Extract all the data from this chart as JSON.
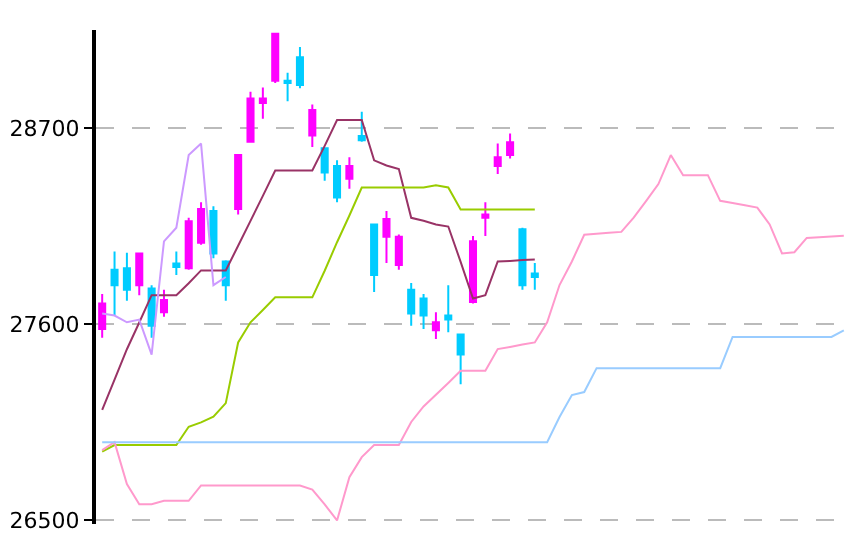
{
  "chart_data": {
    "type": "candlestick",
    "categories": [
      null,
      null,
      null,
      null,
      null,
      null,
      null,
      null,
      null,
      null,
      null,
      null,
      null,
      null,
      null,
      null,
      null,
      null,
      null,
      null,
      null,
      null,
      null,
      null,
      null,
      null,
      null,
      null,
      null,
      null,
      null,
      null,
      null,
      null,
      null,
      null,
      null,
      null,
      null,
      null,
      null,
      null,
      null,
      null,
      null,
      null,
      null,
      null,
      null,
      null,
      null,
      null,
      null,
      null,
      null,
      null,
      null,
      null,
      null,
      null,
      null
    ],
    "ohlc": [
      [
        27574,
        27770,
        27524,
        27717
      ],
      [
        27906,
        28008,
        27649,
        27819
      ],
      [
        27914,
        28001,
        27732,
        27793
      ],
      [
        27819,
        27997,
        27763,
        27997
      ],
      [
        27800,
        27819,
        27524,
        27592
      ],
      [
        27668,
        27793,
        27642,
        27736
      ],
      [
        27940,
        28008,
        27876,
        27921
      ],
      [
        27914,
        28197,
        27906,
        28178
      ],
      [
        28057,
        28284,
        28046,
        28246
      ],
      [
        28235,
        28262,
        27970,
        27997
      ],
      [
        27952,
        27959,
        27732,
        27819
      ],
      [
        28246,
        28549,
        28216,
        28549
      ],
      [
        28624,
        28904,
        28624,
        28866
      ],
      [
        28840,
        28927,
        28753,
        28866
      ],
      [
        28965,
        29229,
        28953,
        29229
      ],
      [
        28965,
        29010,
        28851,
        28953
      ],
      [
        29097,
        29154,
        28923,
        28942
      ],
      [
        28658,
        28832,
        28594,
        28802
      ],
      [
        28587,
        28587,
        28405,
        28451
      ],
      [
        28488,
        28519,
        28284,
        28311
      ],
      [
        28416,
        28537,
        28360,
        28488
      ],
      [
        28655,
        28791,
        28624,
        28632
      ],
      [
        28159,
        28159,
        27781,
        27876
      ],
      [
        28091,
        28235,
        27944,
        28190
      ],
      [
        27933,
        28103,
        27906,
        28091
      ],
      [
        27793,
        27831,
        27592,
        27660
      ],
      [
        27744,
        27770,
        27574,
        27649
      ],
      [
        27566,
        27668,
        27517,
        27611
      ],
      [
        27649,
        27819,
        27555,
        27626
      ],
      [
        27543,
        27543,
        27264,
        27430
      ],
      [
        27725,
        28095,
        27717,
        28065
      ],
      [
        28197,
        28284,
        28095,
        28216
      ],
      [
        28488,
        28613,
        28443,
        28537
      ],
      [
        28549,
        28670,
        28530,
        28621
      ],
      [
        28133,
        28141,
        27793,
        27819
      ],
      [
        27884,
        27944,
        27793,
        27865
      ],
      null,
      null,
      null,
      null,
      null,
      null,
      null,
      null,
      null,
      null,
      null,
      null,
      null,
      null,
      null,
      null,
      null,
      null,
      null,
      null,
      null,
      null,
      null,
      null,
      null
    ],
    "colors": [
      "#ff00ff",
      "#00ccff",
      "#00ccff",
      "#ff00ff",
      "#00ccff",
      "#ff00ff",
      "#00ccff",
      "#ff00ff",
      "#ff00ff",
      "#00ccff",
      "#00ccff",
      "#ff00ff",
      "#ff00ff",
      "#ff00ff",
      "#ff00ff",
      "#00ccff",
      "#00ccff",
      "#ff00ff",
      "#00ccff",
      "#00ccff",
      "#ff00ff",
      "#00ccff",
      "#00ccff",
      "#ff00ff",
      "#ff00ff",
      "#00ccff",
      "#00ccff",
      "#ff00ff",
      "#00ccff",
      "#00ccff",
      "#ff00ff",
      "#ff00ff",
      "#ff00ff",
      "#ff00ff",
      "#00ccff",
      "#00ccff",
      null,
      null,
      null,
      null,
      null,
      null,
      null,
      null,
      null,
      null,
      null,
      null,
      null,
      null,
      null,
      null,
      null,
      null,
      null,
      null,
      null,
      null,
      null,
      null,
      null
    ],
    "series": [
      {
        "type": "line",
        "color": "#993366",
        "values": [
          27120,
          27290,
          27460,
          27610,
          27763,
          27763,
          27763,
          27830,
          27902,
          27902,
          27902,
          28040,
          28180,
          28320,
          28462,
          28462,
          28462,
          28462,
          28600,
          28745,
          28745,
          28745,
          28519,
          28490,
          28470,
          28197,
          28180,
          28159,
          28148,
          27950,
          27744,
          27763,
          27952,
          27955,
          27960,
          27963,
          null,
          null,
          null,
          null,
          null,
          null,
          null,
          null,
          null,
          null,
          null,
          null,
          null,
          null,
          null,
          null,
          null,
          null,
          null,
          null,
          null,
          null,
          null,
          null,
          null
        ]
      },
      {
        "type": "line",
        "color": "#99cc00",
        "values": [
          26886,
          26923,
          26923,
          26923,
          26923,
          26923,
          26923,
          27025,
          27050,
          27082,
          27158,
          27498,
          27611,
          27680,
          27751,
          27751,
          27751,
          27751,
          27900,
          28060,
          28210,
          28367,
          28367,
          28367,
          28367,
          28367,
          28367,
          28380,
          28367,
          28243,
          28243,
          28243,
          28243,
          28243,
          28243,
          28243,
          null,
          null,
          null,
          null,
          null,
          null,
          null,
          null,
          null,
          null,
          null,
          null,
          null,
          null,
          null,
          null,
          null,
          null,
          null,
          null,
          null,
          null,
          null,
          null,
          null
        ]
      },
      {
        "type": "line",
        "color": "#cc99ff",
        "values": [
          27660,
          27649,
          27611,
          27626,
          27430,
          28065,
          28141,
          28549,
          28613,
          27819,
          27865,
          null,
          null,
          null,
          null,
          null,
          null,
          null,
          null,
          null,
          null,
          null,
          null,
          null,
          null,
          null,
          null,
          null,
          null,
          null,
          null,
          null,
          null,
          null,
          null,
          null,
          null,
          null,
          null,
          null,
          null,
          null,
          null,
          null,
          null,
          null,
          null,
          null,
          null,
          null,
          null,
          null,
          null,
          null,
          null,
          null,
          null,
          null,
          null,
          null,
          null
        ]
      },
      {
        "type": "line",
        "color": "#ff99cc",
        "values": [
          26894,
          26939,
          26704,
          26591,
          26591,
          26610,
          26610,
          26610,
          26696,
          26696,
          26696,
          26696,
          26696,
          26696,
          26696,
          26696,
          26696,
          26673,
          26590,
          26500,
          26742,
          26855,
          26923,
          26923,
          26923,
          27052,
          27139,
          27205,
          27271,
          27339,
          27339,
          27339,
          27461,
          27473,
          27486,
          27498,
          27611,
          27820,
          27952,
          28102,
          28107,
          28113,
          28118,
          28198,
          28290,
          28386,
          28549,
          28436,
          28436,
          28436,
          28292,
          28280,
          28267,
          28254,
          28160,
          27997,
          28004,
          28084,
          28088,
          28092,
          28096
        ]
      },
      {
        "type": "line",
        "color": "#99ccff",
        "values": [
          26939,
          26939,
          26939,
          26939,
          26939,
          26939,
          26939,
          26939,
          26939,
          26939,
          26939,
          26939,
          26939,
          26939,
          26939,
          26939,
          26939,
          26939,
          26939,
          26939,
          26939,
          26939,
          26939,
          26939,
          26939,
          26939,
          26939,
          26939,
          26939,
          26939,
          26939,
          26939,
          26939,
          26939,
          26939,
          26939,
          26939,
          27080,
          27203,
          27220,
          27354,
          27354,
          27354,
          27354,
          27354,
          27354,
          27354,
          27354,
          27354,
          27354,
          27354,
          27529,
          27529,
          27529,
          27529,
          27529,
          27529,
          27529,
          27529,
          27529,
          27566
        ]
      }
    ],
    "ylim": [
      26480,
      29250
    ],
    "yticks": [
      26500,
      27600,
      28700
    ],
    "tick_labels": "y",
    "grid": "y",
    "marker": "none",
    "line_style": "solid"
  }
}
